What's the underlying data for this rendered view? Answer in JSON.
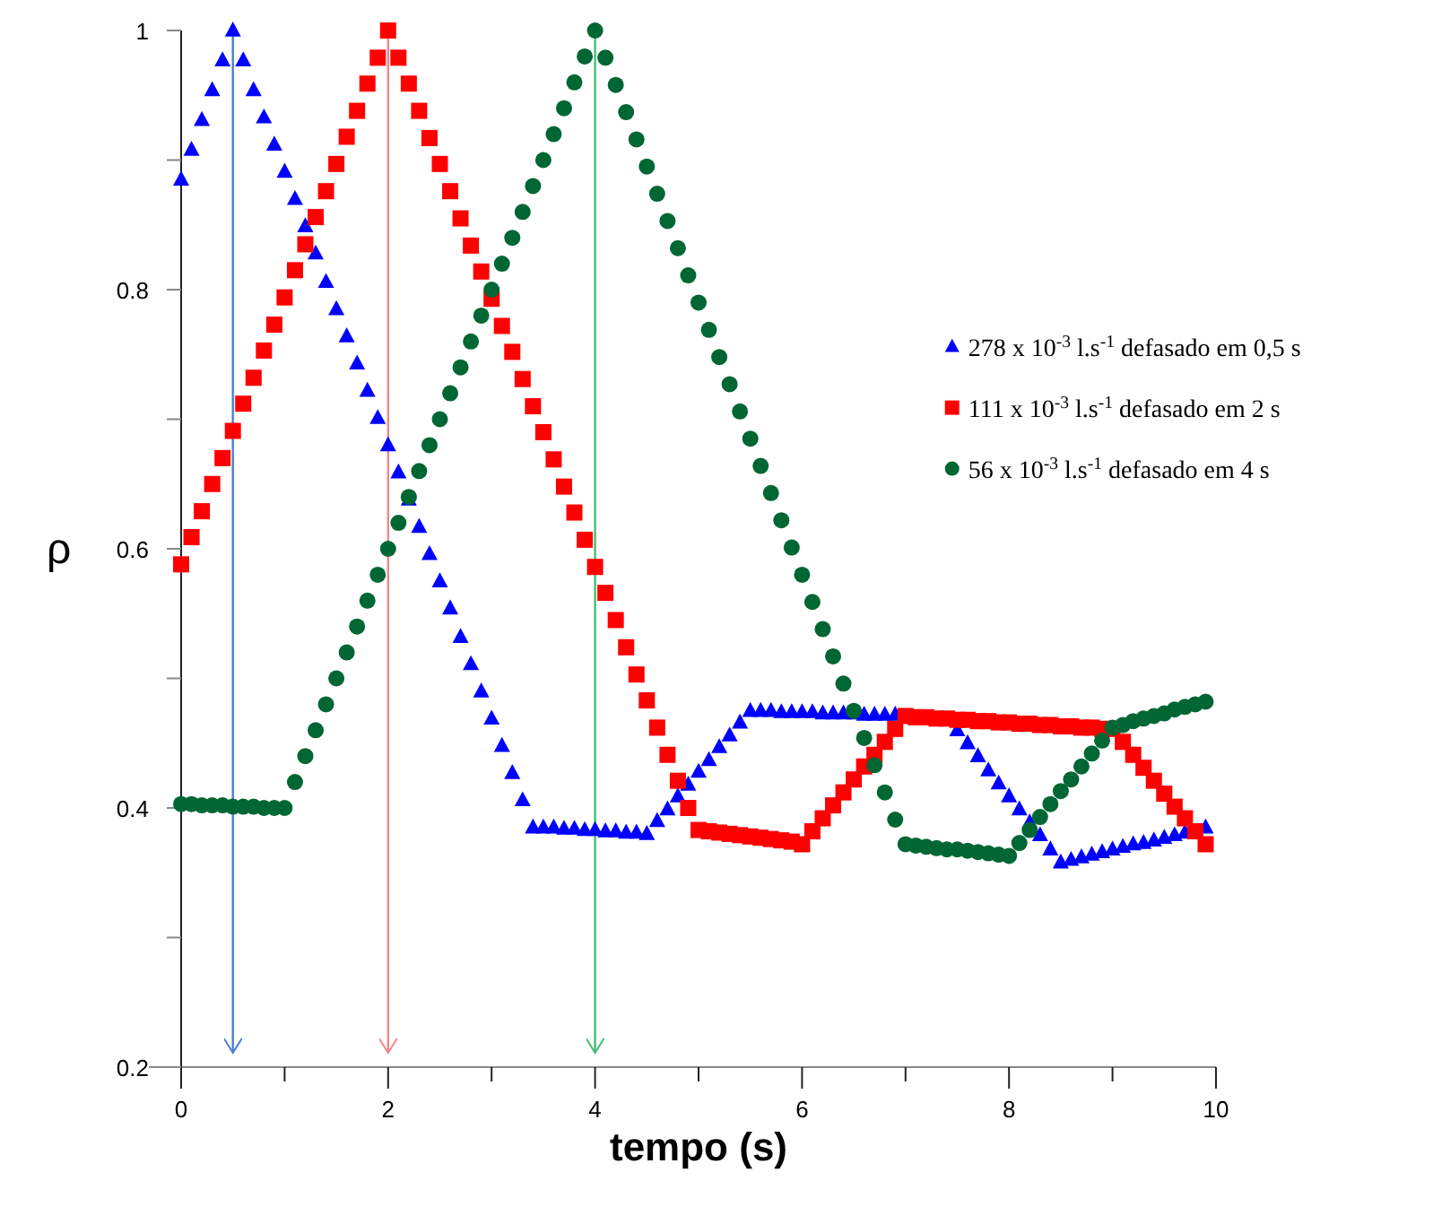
{
  "chart_data": {
    "type": "scatter",
    "xlabel": "tempo (s)",
    "ylabel": "ρ",
    "x": [
      0,
      0.1,
      0.2,
      0.3,
      0.4,
      0.5,
      0.6,
      0.7,
      0.8,
      0.9,
      1,
      1.1,
      1.2,
      1.3,
      1.4,
      1.5,
      1.6,
      1.7,
      1.8,
      1.9,
      2,
      2.1,
      2.2,
      2.3,
      2.4,
      2.5,
      2.6,
      2.7,
      2.8,
      2.9,
      3,
      3.1,
      3.2,
      3.3,
      3.4,
      3.5,
      3.6,
      3.7,
      3.8,
      3.9,
      4,
      4.1,
      4.2,
      4.3,
      4.4,
      4.5,
      4.6,
      4.7,
      4.8,
      4.9,
      5,
      5.1,
      5.2,
      5.3,
      5.4,
      5.5,
      5.6,
      5.7,
      5.8,
      5.9,
      6,
      6.1,
      6.2,
      6.3,
      6.4,
      6.5,
      6.6,
      6.7,
      6.8,
      6.9,
      7,
      7.1,
      7.2,
      7.3,
      7.4,
      7.5,
      7.6,
      7.7,
      7.8,
      7.9,
      8,
      8.1,
      8.2,
      8.3,
      8.4,
      8.5,
      8.6,
      8.7,
      8.8,
      8.9,
      9,
      9.1,
      9.2,
      9.3,
      9.4,
      9.5,
      9.6,
      9.7,
      9.8,
      9.9
    ],
    "xlim": [
      0,
      10
    ],
    "xticks": [
      0,
      {
        "value": 1,
        "label": null
      },
      2,
      {
        "value": 3,
        "label": null
      },
      4,
      {
        "value": 5,
        "label": null
      },
      6,
      {
        "value": 7,
        "label": null
      },
      8,
      {
        "value": 9,
        "label": null
      },
      10
    ],
    "ylim": [
      0.2,
      1
    ],
    "yticks": [
      0.2,
      {
        "value": 0.3,
        "label": null
      },
      0.4,
      {
        "value": 0.5,
        "label": null
      },
      0.6,
      {
        "value": 0.7,
        "label": null
      },
      0.8,
      {
        "value": 0.9,
        "label": null
      },
      1
    ],
    "grid": false,
    "legend": "right",
    "line_style": "none",
    "series": [
      {
        "name": "278 x 10$^{-3}$ l.s$^{-1}$ defasado em 0,5 s",
        "color": "#0000ff",
        "marker": "triangle",
        "values": [
          0.885,
          0.908,
          0.931,
          0.954,
          0.977,
          1.0,
          0.977,
          0.954,
          0.933,
          0.912,
          0.891,
          0.87,
          0.849,
          0.828,
          0.806,
          0.785,
          0.764,
          0.743,
          0.722,
          0.701,
          0.68,
          0.659,
          0.638,
          0.617,
          0.596,
          0.575,
          0.554,
          0.532,
          0.511,
          0.49,
          0.469,
          0.448,
          0.427,
          0.406,
          0.385,
          0.385,
          0.385,
          0.384,
          0.384,
          0.383,
          0.383,
          0.382,
          0.382,
          0.381,
          0.381,
          0.38,
          0.39,
          0.399,
          0.409,
          0.418,
          0.428,
          0.437,
          0.447,
          0.456,
          0.466,
          0.475,
          0.475,
          0.475,
          0.474,
          0.474,
          0.474,
          0.474,
          0.473,
          0.473,
          0.473,
          0.473,
          0.472,
          0.472,
          0.472,
          0.472,
          null,
          null,
          null,
          null,
          null,
          0.46,
          0.45,
          0.44,
          0.429,
          0.419,
          0.409,
          0.399,
          0.389,
          0.379,
          0.368,
          0.358,
          0.36,
          0.362,
          0.364,
          0.366,
          0.368,
          0.37,
          0.372,
          0.373,
          0.375,
          0.377,
          0.379,
          0.381,
          null,
          0.385
        ]
      },
      {
        "name": "111 x 10$^{-3}$ l.s$^{-1}$ defasado em 2 s",
        "color": "#ff0000",
        "marker": "square",
        "values": [
          0.588,
          0.609,
          0.629,
          0.65,
          0.67,
          0.691,
          0.712,
          0.732,
          0.753,
          0.773,
          0.794,
          0.815,
          0.835,
          0.856,
          0.876,
          0.897,
          0.918,
          0.938,
          0.959,
          0.979,
          1.0,
          0.979,
          0.959,
          0.938,
          0.917,
          0.897,
          0.876,
          0.855,
          0.834,
          0.814,
          0.793,
          0.772,
          0.752,
          0.731,
          0.71,
          0.69,
          0.669,
          0.648,
          0.628,
          0.607,
          0.586,
          0.566,
          0.545,
          0.524,
          0.503,
          0.483,
          0.462,
          0.441,
          0.421,
          0.4,
          0.383,
          0.382,
          0.381,
          0.38,
          0.379,
          0.378,
          0.377,
          0.376,
          0.375,
          0.374,
          0.372,
          0.382,
          0.392,
          0.402,
          0.412,
          0.422,
          0.432,
          0.441,
          0.451,
          0.461,
          0.471,
          0.47,
          0.47,
          0.469,
          0.469,
          0.468,
          0.468,
          0.467,
          0.467,
          0.466,
          0.466,
          0.465,
          0.465,
          0.464,
          0.464,
          0.463,
          0.463,
          0.462,
          0.462,
          0.461,
          0.461,
          0.451,
          0.441,
          0.431,
          0.421,
          0.411,
          0.401,
          0.392,
          0.382,
          0.372
        ]
      },
      {
        "name": "56 x 10$^{-3}$ l.s$^{-1}$ defasado em 4 s",
        "color": "#006633",
        "marker": "circle",
        "values": [
          0.403,
          0.403,
          0.402,
          0.402,
          0.402,
          0.401,
          0.401,
          0.401,
          0.4,
          0.4,
          0.4,
          0.42,
          0.44,
          0.46,
          0.48,
          0.5,
          0.52,
          0.54,
          0.56,
          0.58,
          0.6,
          0.62,
          0.64,
          0.66,
          0.68,
          0.7,
          0.72,
          0.74,
          0.76,
          0.78,
          0.8,
          0.82,
          0.84,
          0.86,
          0.88,
          0.9,
          0.92,
          0.94,
          0.96,
          0.98,
          1.0,
          0.979,
          0.958,
          0.937,
          0.916,
          0.895,
          0.874,
          0.853,
          0.832,
          0.811,
          0.79,
          0.769,
          0.748,
          0.727,
          0.706,
          0.685,
          0.664,
          0.643,
          0.622,
          0.601,
          0.58,
          0.559,
          0.538,
          0.517,
          0.496,
          0.475,
          0.454,
          0.433,
          0.412,
          0.391,
          0.372,
          0.371,
          0.37,
          0.369,
          0.368,
          0.368,
          0.367,
          0.366,
          0.365,
          0.364,
          0.363,
          0.373,
          0.383,
          0.393,
          0.403,
          0.413,
          0.422,
          0.432,
          0.442,
          0.452,
          0.462,
          0.464,
          0.467,
          0.469,
          0.471,
          0.473,
          0.476,
          0.478,
          0.48,
          0.482
        ]
      }
    ],
    "ref_lines": [
      {
        "axis": "x",
        "value": 0.5,
        "color": "#4a7fd0"
      },
      {
        "axis": "x",
        "value": 2,
        "color": "#f08888"
      },
      {
        "axis": "x",
        "value": 4,
        "color": "#40c070"
      }
    ]
  }
}
